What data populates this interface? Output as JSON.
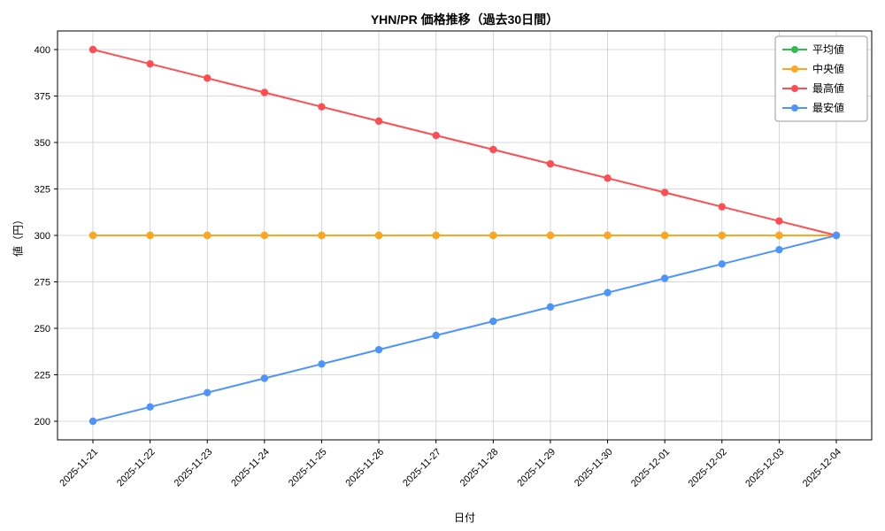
{
  "chart_data": {
    "type": "line",
    "title": "YHN/PR 価格推移（過去30日間）",
    "xlabel": "日付",
    "ylabel": "値（円）",
    "grid": true,
    "legend_position": "upper right",
    "ylim": [
      190,
      410
    ],
    "yticks": [
      200,
      225,
      250,
      275,
      300,
      325,
      350,
      375,
      400
    ],
    "x": [
      "2025-11-21",
      "2025-11-22",
      "2025-11-23",
      "2025-11-24",
      "2025-11-25",
      "2025-11-26",
      "2025-11-27",
      "2025-11-28",
      "2025-11-29",
      "2025-11-30",
      "2025-12-01",
      "2025-12-02",
      "2025-12-03",
      "2025-12-04"
    ],
    "series": [
      {
        "key": "average",
        "name": "平均値",
        "color": "#2ebc4f",
        "values": [
          300,
          300,
          300,
          300,
          300,
          300,
          300,
          300,
          300,
          300,
          300,
          300,
          300,
          300
        ]
      },
      {
        "key": "median",
        "name": "中央値",
        "color": "#ffa51e",
        "values": [
          300,
          300,
          300,
          300,
          300,
          300,
          300,
          300,
          300,
          300,
          300,
          300,
          300,
          300
        ]
      },
      {
        "key": "max",
        "name": "最高値",
        "color": "#ff4d52",
        "values": [
          400,
          392.3,
          384.6,
          376.9,
          369.2,
          361.5,
          353.8,
          346.2,
          338.5,
          330.8,
          323.1,
          315.4,
          307.7,
          300
        ]
      },
      {
        "key": "min",
        "name": "最安値",
        "color": "#4d94ff",
        "values": [
          200,
          207.7,
          215.4,
          223.1,
          230.8,
          238.5,
          246.2,
          253.8,
          261.5,
          269.2,
          276.9,
          284.6,
          292.3,
          300
        ]
      }
    ],
    "grid_color": "#cccccc",
    "axis_color": "#000000"
  }
}
